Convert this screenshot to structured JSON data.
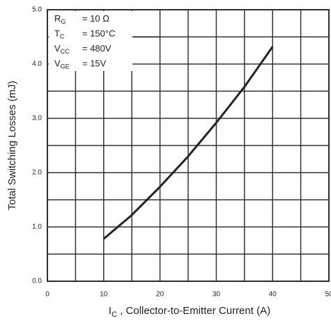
{
  "chart_data": {
    "type": "line",
    "ylabel": "Total Switching Losses (mJ)",
    "xlabel": {
      "main": "I",
      "subscript": "C",
      "rest": " , Collector-to-Emitter Current (A)"
    },
    "x": [
      10,
      15,
      20,
      25,
      30,
      35,
      40
    ],
    "series": [
      {
        "color": "#222222",
        "values": [
          0.78,
          1.22,
          1.74,
          2.3,
          2.92,
          3.58,
          4.32
        ]
      }
    ],
    "xlim": [
      0,
      50
    ],
    "xticks": [
      0,
      10,
      20,
      30,
      40,
      50
    ],
    "xminor_ticks": [
      5,
      15,
      25,
      35,
      45
    ],
    "ylim": [
      0,
      5
    ],
    "yticks": [
      {
        "value": 0,
        "label": "0.0"
      },
      {
        "value": 1,
        "label": "1.0"
      },
      {
        "value": 2,
        "label": "2.0"
      },
      {
        "value": 3,
        "label": "3.0"
      },
      {
        "value": 4,
        "label": "4.0"
      },
      {
        "value": 5,
        "label": "5.0"
      }
    ],
    "yminor_ticks": [
      0.5,
      1.5,
      2.5,
      3.5,
      4.5
    ],
    "grid": true,
    "conditions": [
      {
        "symbol": "R",
        "subscript": "G",
        "value": "= 10 Ω"
      },
      {
        "symbol": "T",
        "subscript": "C",
        "value": "= 150°C"
      },
      {
        "symbol": "V",
        "subscript": "CC",
        "value": "= 480V"
      },
      {
        "symbol": "V",
        "subscript": "GE",
        "value": "= 15V"
      }
    ]
  }
}
